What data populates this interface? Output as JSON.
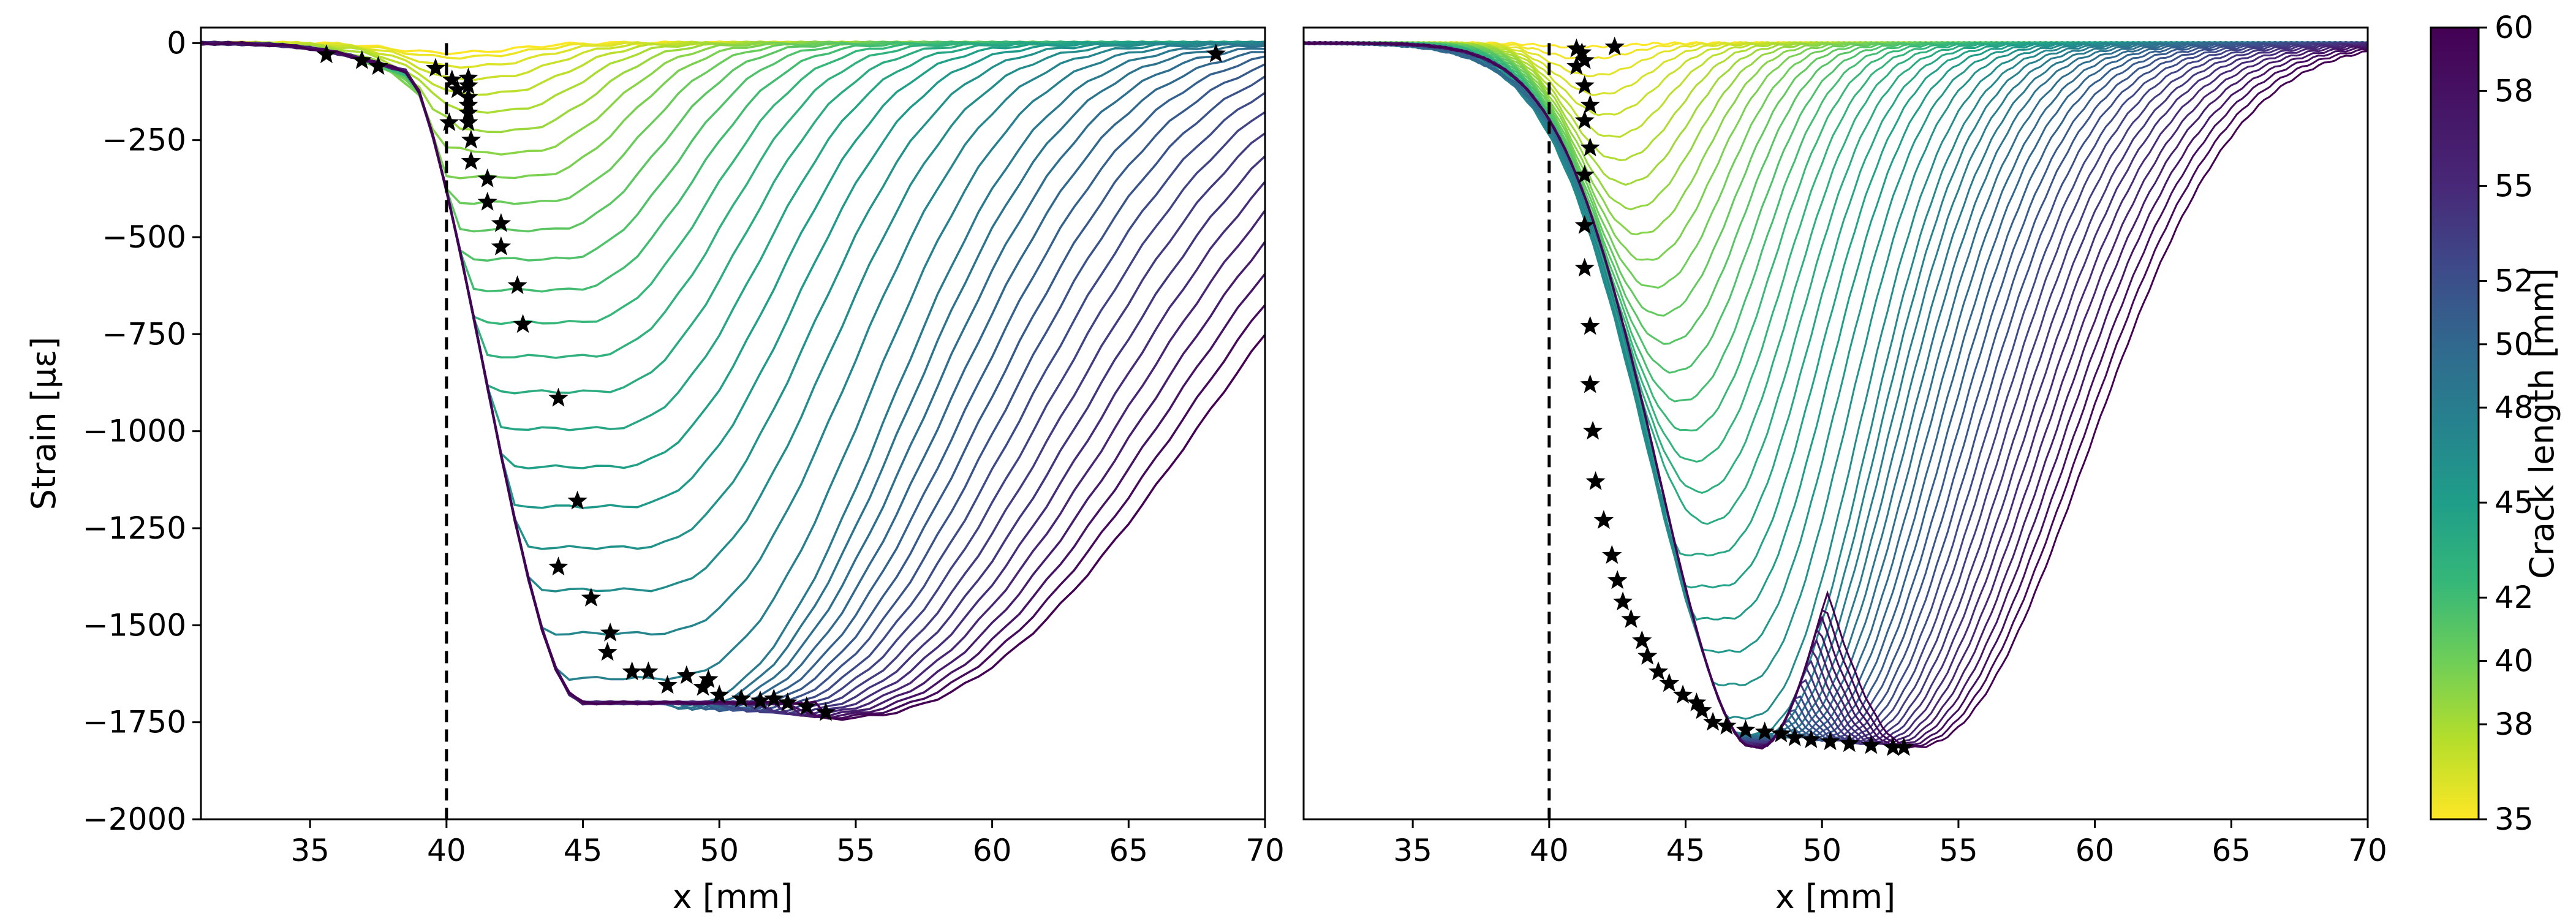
{
  "chart_data": [
    {
      "type": "line",
      "panel": "left",
      "xlabel": "x [mm]",
      "ylabel": "Strain [με]",
      "xlim": [
        31,
        70
      ],
      "ylim": [
        -2000,
        40
      ],
      "xticks": [
        35,
        40,
        45,
        50,
        55,
        60,
        65,
        70
      ],
      "yticks": [
        0,
        -250,
        -500,
        -750,
        -1000,
        -1250,
        -1500,
        -1750,
        -2000
      ],
      "xtick_labels": [
        "35",
        "40",
        "45",
        "50",
        "55",
        "60",
        "65",
        "70"
      ],
      "ytick_labels": [
        "0",
        "−250",
        "−500",
        "−750",
        "−1000",
        "−1250",
        "−1500",
        "−1750",
        "−2000"
      ],
      "series_count": 40,
      "series_color_by": "crack length (35–60 mm)",
      "reference_line_x": 40,
      "crack_tip_markers": [
        {
          "x": 35.6,
          "y": -30
        },
        {
          "x": 36.9,
          "y": -45
        },
        {
          "x": 37.5,
          "y": -60
        },
        {
          "x": 39.6,
          "y": -65
        },
        {
          "x": 40.2,
          "y": -95
        },
        {
          "x": 40.4,
          "y": -120
        },
        {
          "x": 40.8,
          "y": -90
        },
        {
          "x": 40.8,
          "y": -110
        },
        {
          "x": 40.8,
          "y": -140
        },
        {
          "x": 40.8,
          "y": -160
        },
        {
          "x": 40.8,
          "y": -180
        },
        {
          "x": 40.8,
          "y": -205
        },
        {
          "x": 40.1,
          "y": -205
        },
        {
          "x": 40.9,
          "y": -250
        },
        {
          "x": 40.9,
          "y": -305
        },
        {
          "x": 41.5,
          "y": -350
        },
        {
          "x": 41.5,
          "y": -410
        },
        {
          "x": 42.0,
          "y": -465
        },
        {
          "x": 42.0,
          "y": -525
        },
        {
          "x": 42.6,
          "y": -625
        },
        {
          "x": 42.8,
          "y": -725
        },
        {
          "x": 44.1,
          "y": -915
        },
        {
          "x": 44.8,
          "y": -1180
        },
        {
          "x": 44.1,
          "y": -1350
        },
        {
          "x": 45.3,
          "y": -1430
        },
        {
          "x": 46.0,
          "y": -1520
        },
        {
          "x": 45.9,
          "y": -1570
        },
        {
          "x": 46.8,
          "y": -1620
        },
        {
          "x": 47.4,
          "y": -1620
        },
        {
          "x": 48.1,
          "y": -1655
        },
        {
          "x": 48.8,
          "y": -1630
        },
        {
          "x": 49.4,
          "y": -1660
        },
        {
          "x": 49.6,
          "y": -1640
        },
        {
          "x": 50.0,
          "y": -1680
        },
        {
          "x": 50.8,
          "y": -1690
        },
        {
          "x": 51.5,
          "y": -1695
        },
        {
          "x": 52.0,
          "y": -1690
        },
        {
          "x": 52.5,
          "y": -1700
        },
        {
          "x": 53.2,
          "y": -1710
        },
        {
          "x": 53.9,
          "y": -1725
        },
        {
          "x": 68.2,
          "y": -28
        }
      ]
    },
    {
      "type": "line",
      "panel": "right",
      "xlabel": "x [mm]",
      "ylabel": "",
      "xlim": [
        31,
        70
      ],
      "ylim": [
        -2000,
        40
      ],
      "xticks": [
        35,
        40,
        45,
        50,
        55,
        60,
        65,
        70
      ],
      "xtick_labels": [
        "35",
        "40",
        "45",
        "50",
        "55",
        "60",
        "65",
        "70"
      ],
      "series_count": 50,
      "series_color_by": "crack length (35–60 mm)",
      "reference_line_x": 40,
      "crack_tip_markers": [
        {
          "x": 41.0,
          "y": -15
        },
        {
          "x": 41.2,
          "y": -25
        },
        {
          "x": 41.3,
          "y": -45
        },
        {
          "x": 41.0,
          "y": -60
        },
        {
          "x": 42.4,
          "y": -10
        },
        {
          "x": 41.3,
          "y": -110
        },
        {
          "x": 41.5,
          "y": -160
        },
        {
          "x": 41.3,
          "y": -200
        },
        {
          "x": 41.5,
          "y": -270
        },
        {
          "x": 41.3,
          "y": -340
        },
        {
          "x": 41.3,
          "y": -470
        },
        {
          "x": 41.3,
          "y": -580
        },
        {
          "x": 41.5,
          "y": -730
        },
        {
          "x": 41.5,
          "y": -880
        },
        {
          "x": 41.6,
          "y": -1000
        },
        {
          "x": 41.7,
          "y": -1130
        },
        {
          "x": 42.0,
          "y": -1230
        },
        {
          "x": 42.3,
          "y": -1320
        },
        {
          "x": 42.5,
          "y": -1385
        },
        {
          "x": 42.7,
          "y": -1440
        },
        {
          "x": 43.0,
          "y": -1485
        },
        {
          "x": 43.4,
          "y": -1540
        },
        {
          "x": 43.6,
          "y": -1580
        },
        {
          "x": 44.0,
          "y": -1620
        },
        {
          "x": 44.4,
          "y": -1650
        },
        {
          "x": 44.9,
          "y": -1680
        },
        {
          "x": 45.4,
          "y": -1700
        },
        {
          "x": 45.6,
          "y": -1720
        },
        {
          "x": 46.0,
          "y": -1750
        },
        {
          "x": 46.5,
          "y": -1760
        },
        {
          "x": 47.2,
          "y": -1770
        },
        {
          "x": 47.9,
          "y": -1775
        },
        {
          "x": 48.5,
          "y": -1780
        },
        {
          "x": 49.0,
          "y": -1790
        },
        {
          "x": 49.6,
          "y": -1795
        },
        {
          "x": 50.3,
          "y": -1800
        },
        {
          "x": 51.0,
          "y": -1805
        },
        {
          "x": 51.8,
          "y": -1810
        },
        {
          "x": 52.6,
          "y": -1815
        },
        {
          "x": 53.0,
          "y": -1815
        }
      ]
    }
  ],
  "colorbar": {
    "label": "Crack length [mm]",
    "range": [
      35,
      60
    ],
    "ticks": [
      35,
      38,
      40,
      42,
      45,
      48,
      50,
      52,
      55,
      58,
      60
    ],
    "tick_labels": [
      "35",
      "38",
      "40",
      "42",
      "45",
      "48",
      "50",
      "52",
      "55",
      "58",
      "60"
    ],
    "colormap": "viridis-reversed"
  }
}
